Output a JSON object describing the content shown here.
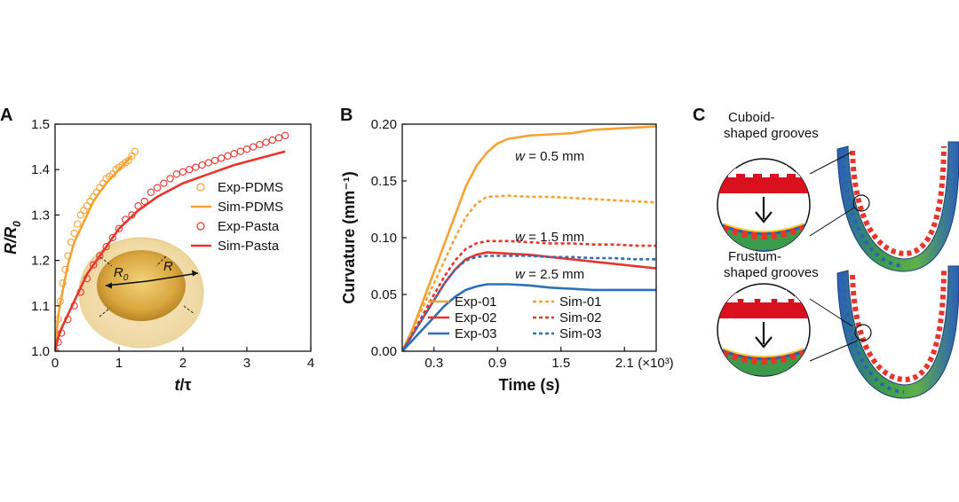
{
  "colors": {
    "orange": "#F5A234",
    "red": "#E8352C",
    "blue": "#2F6FB5",
    "axis": "#111111"
  },
  "panels": {
    "A": {
      "letter": "A"
    },
    "B": {
      "letter": "B"
    },
    "C": {
      "letter": "C",
      "cuboid_label": [
        "Cuboid-",
        "shaped grooves"
      ],
      "frustum_label": [
        "Frustum-",
        "shaped grooves"
      ]
    }
  },
  "inset_A": {
    "R0_label": "R",
    "R0_sub": "0",
    "R_label": "R"
  },
  "chart_data": [
    {
      "type": "scatter",
      "panel": "A",
      "xlabel": "t/τ",
      "ylabel": "R/R0",
      "xlim": [
        0,
        4
      ],
      "ylim": [
        1.0,
        1.5
      ],
      "xticks": [
        "0",
        "1",
        "2",
        "3",
        "4"
      ],
      "yticks": [
        "1.0",
        "1.1",
        "1.2",
        "1.3",
        "1.4",
        "1.5"
      ],
      "legend_position": "right",
      "series": [
        {
          "name": "Exp-PDMS",
          "kind": "markers",
          "color": "#F5A234",
          "x": [
            0.0,
            0.02,
            0.05,
            0.08,
            0.12,
            0.16,
            0.2,
            0.25,
            0.3,
            0.35,
            0.4,
            0.45,
            0.5,
            0.55,
            0.6,
            0.65,
            0.7,
            0.75,
            0.8,
            0.85,
            0.9,
            0.95,
            1.0,
            1.05,
            1.1,
            1.15,
            1.2,
            1.25
          ],
          "y": [
            1.0,
            1.04,
            1.07,
            1.11,
            1.15,
            1.18,
            1.21,
            1.24,
            1.26,
            1.28,
            1.3,
            1.31,
            1.32,
            1.33,
            1.34,
            1.35,
            1.36,
            1.37,
            1.38,
            1.385,
            1.39,
            1.4,
            1.405,
            1.41,
            1.415,
            1.42,
            1.43,
            1.44
          ]
        },
        {
          "name": "Sim-PDMS",
          "kind": "line",
          "color": "#F5A234",
          "x": [
            0.0,
            0.05,
            0.1,
            0.2,
            0.3,
            0.4,
            0.5,
            0.6,
            0.7,
            0.8,
            0.9,
            1.0,
            1.1,
            1.2
          ],
          "y": [
            1.0,
            1.08,
            1.12,
            1.19,
            1.24,
            1.27,
            1.3,
            1.33,
            1.35,
            1.37,
            1.385,
            1.4,
            1.415,
            1.43
          ]
        },
        {
          "name": "Exp-Pasta",
          "kind": "markers",
          "color": "#E8352C",
          "x": [
            0.0,
            0.05,
            0.1,
            0.2,
            0.3,
            0.4,
            0.5,
            0.6,
            0.7,
            0.8,
            0.9,
            1.0,
            1.1,
            1.2,
            1.3,
            1.4,
            1.5,
            1.6,
            1.7,
            1.8,
            1.9,
            2.0,
            2.1,
            2.2,
            2.3,
            2.4,
            2.5,
            2.6,
            2.7,
            2.8,
            2.9,
            3.0,
            3.1,
            3.2,
            3.3,
            3.4,
            3.5,
            3.6
          ],
          "y": [
            1.0,
            1.02,
            1.04,
            1.07,
            1.1,
            1.13,
            1.16,
            1.19,
            1.21,
            1.23,
            1.25,
            1.27,
            1.29,
            1.3,
            1.32,
            1.33,
            1.35,
            1.36,
            1.37,
            1.38,
            1.39,
            1.395,
            1.4,
            1.405,
            1.41,
            1.415,
            1.42,
            1.425,
            1.43,
            1.435,
            1.44,
            1.445,
            1.45,
            1.455,
            1.46,
            1.465,
            1.47,
            1.475
          ]
        },
        {
          "name": "Sim-Pasta",
          "kind": "line",
          "color": "#E8352C",
          "x": [
            0.0,
            0.05,
            0.1,
            0.2,
            0.3,
            0.5,
            0.7,
            1.0,
            1.3,
            1.6,
            2.0,
            2.4,
            2.8,
            3.2,
            3.6
          ],
          "y": [
            1.0,
            1.03,
            1.05,
            1.08,
            1.11,
            1.17,
            1.21,
            1.27,
            1.31,
            1.34,
            1.37,
            1.39,
            1.41,
            1.425,
            1.44
          ]
        }
      ]
    },
    {
      "type": "line",
      "panel": "B",
      "xlabel": "Time (s)",
      "ylabel": "Curvature (mm⁻¹)",
      "xlim": [
        0,
        2.4
      ],
      "ylim": [
        0,
        0.2
      ],
      "xticks": [
        "0.3",
        "0.9",
        "1.5",
        "2.1"
      ],
      "xtick_values": [
        0.3,
        0.9,
        1.5,
        2.1
      ],
      "x_multiplier_label": "(×10³)",
      "yticks": [
        "0.00",
        "0.05",
        "0.10",
        "0.15",
        "0.20"
      ],
      "legend_position": "bottom",
      "annotations": [
        {
          "prefix": "w",
          "text": " = 0.5 mm",
          "x": 1.0,
          "y": 0.168
        },
        {
          "prefix": "w",
          "text": " = 1.5 mm",
          "x": 1.0,
          "y": 0.097
        },
        {
          "prefix": "w",
          "text": " = 2.5 mm",
          "x": 1.0,
          "y": 0.064
        }
      ],
      "series": [
        {
          "name": "Exp-01",
          "dash": false,
          "color": "#F5A234",
          "x": [
            0.0,
            0.1,
            0.2,
            0.3,
            0.4,
            0.5,
            0.6,
            0.7,
            0.8,
            0.9,
            1.0,
            1.2,
            1.4,
            1.6,
            1.8,
            2.0,
            2.2,
            2.4
          ],
          "y": [
            0.0,
            0.02,
            0.045,
            0.07,
            0.095,
            0.12,
            0.145,
            0.163,
            0.175,
            0.183,
            0.187,
            0.19,
            0.191,
            0.192,
            0.195,
            0.196,
            0.197,
            0.198
          ]
        },
        {
          "name": "Sim-01",
          "dash": true,
          "color": "#F5A234",
          "x": [
            0.0,
            0.1,
            0.2,
            0.3,
            0.4,
            0.5,
            0.6,
            0.7,
            0.8,
            1.0,
            1.2,
            1.4,
            1.6,
            1.8,
            2.0,
            2.2,
            2.4
          ],
          "y": [
            0.0,
            0.02,
            0.04,
            0.06,
            0.08,
            0.1,
            0.118,
            0.13,
            0.136,
            0.137,
            0.136,
            0.136,
            0.135,
            0.134,
            0.133,
            0.132,
            0.131
          ]
        },
        {
          "name": "Exp-02",
          "dash": false,
          "color": "#E8352C",
          "x": [
            0.0,
            0.1,
            0.2,
            0.3,
            0.4,
            0.5,
            0.6,
            0.7,
            0.8,
            1.0,
            1.2,
            1.4,
            1.6,
            1.8,
            2.0,
            2.2,
            2.4
          ],
          "y": [
            0.0,
            0.015,
            0.03,
            0.045,
            0.06,
            0.072,
            0.081,
            0.085,
            0.087,
            0.086,
            0.085,
            0.083,
            0.081,
            0.079,
            0.077,
            0.075,
            0.073
          ]
        },
        {
          "name": "Sim-02",
          "dash": true,
          "color": "#E8352C",
          "x": [
            0.0,
            0.1,
            0.2,
            0.3,
            0.4,
            0.5,
            0.6,
            0.7,
            0.8,
            1.0,
            1.2,
            1.4,
            1.6,
            1.8,
            2.0,
            2.2,
            2.4
          ],
          "y": [
            0.0,
            0.016,
            0.033,
            0.05,
            0.066,
            0.08,
            0.09,
            0.095,
            0.097,
            0.097,
            0.096,
            0.095,
            0.095,
            0.094,
            0.094,
            0.093,
            0.093
          ]
        },
        {
          "name": "Exp-03",
          "dash": false,
          "color": "#2F6FB5",
          "x": [
            0.0,
            0.1,
            0.2,
            0.3,
            0.4,
            0.5,
            0.6,
            0.7,
            0.8,
            1.0,
            1.2,
            1.4,
            1.6,
            1.8,
            2.0,
            2.2,
            2.4
          ],
          "y": [
            0.0,
            0.01,
            0.02,
            0.03,
            0.04,
            0.048,
            0.054,
            0.057,
            0.059,
            0.059,
            0.058,
            0.056,
            0.055,
            0.054,
            0.054,
            0.054,
            0.054
          ]
        },
        {
          "name": "Sim-03",
          "dash": true,
          "color": "#2F6FB5",
          "x": [
            0.0,
            0.1,
            0.2,
            0.3,
            0.4,
            0.5,
            0.6,
            0.7,
            0.8,
            1.0,
            1.2,
            1.4,
            1.6,
            1.8,
            2.0,
            2.2,
            2.4
          ],
          "y": [
            0.0,
            0.015,
            0.03,
            0.045,
            0.06,
            0.072,
            0.08,
            0.083,
            0.084,
            0.084,
            0.084,
            0.083,
            0.083,
            0.082,
            0.082,
            0.081,
            0.081
          ]
        }
      ]
    }
  ]
}
